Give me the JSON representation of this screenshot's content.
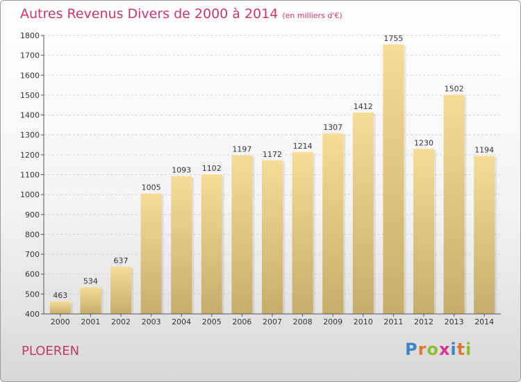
{
  "header": {
    "title": "Autres Revenus Divers de 2000 à 2014",
    "subtitle": "(en milliers d'€)"
  },
  "footer": {
    "place": "PLOEREN",
    "logo_letters": [
      "P",
      "r",
      "o",
      "x",
      "i",
      "t",
      "i"
    ]
  },
  "colors": {
    "title": "#c8376e",
    "bar_light": "#f6dc94",
    "bar_dark": "#c6ad6a",
    "logo": [
      "#3b86c8",
      "#e3762a",
      "#8cbd32",
      "#d8358c",
      "#3b86c8",
      "#e3762a",
      "#8cbd32"
    ]
  },
  "chart_data": {
    "type": "bar",
    "categories": [
      "2000",
      "2001",
      "2002",
      "2003",
      "2004",
      "2005",
      "2006",
      "2007",
      "2008",
      "2009",
      "2010",
      "2011",
      "2012",
      "2013",
      "2014"
    ],
    "values": [
      463,
      534,
      637,
      1005,
      1093,
      1102,
      1197,
      1172,
      1214,
      1307,
      1412,
      1755,
      1230,
      1502,
      1194
    ],
    "ylim": [
      400,
      1800
    ],
    "yticks": [
      400,
      500,
      600,
      700,
      800,
      900,
      1000,
      1100,
      1200,
      1300,
      1400,
      1500,
      1600,
      1700,
      1800
    ],
    "grid": true,
    "data_labels": true
  }
}
